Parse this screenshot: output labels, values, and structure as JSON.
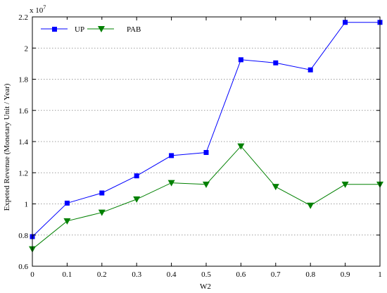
{
  "chart_data": {
    "type": "line",
    "xlabel": "W2",
    "ylabel": "Expeted Revenue (Monetary Unit / Year)",
    "y_multiplier_label": "x 10",
    "y_multiplier_exponent": "7",
    "xlim": [
      0,
      1
    ],
    "ylim": [
      0.6,
      2.2
    ],
    "x_ticks": [
      0,
      0.1,
      0.2,
      0.3,
      0.4,
      0.5,
      0.6,
      0.7,
      0.8,
      0.9,
      1
    ],
    "x_tick_labels": [
      "0",
      "0.1",
      "0.2",
      "0.3",
      "0.4",
      "0.5",
      "0.6",
      "0.7",
      "0.8",
      "0.9",
      "1"
    ],
    "y_ticks": [
      0.6,
      0.8,
      1.0,
      1.2,
      1.4,
      1.6,
      1.8,
      2.0,
      2.2
    ],
    "y_tick_labels": [
      "0.6",
      "0.8",
      "1",
      "1.2",
      "1.4",
      "1.6",
      "1.8",
      "2",
      "2.2"
    ],
    "grid": true,
    "legend_position": "top-left",
    "x": [
      0,
      0.1,
      0.2,
      0.3,
      0.4,
      0.5,
      0.6,
      0.7,
      0.8,
      0.9,
      1.0
    ],
    "series": [
      {
        "name": "UP",
        "color": "#0000ff",
        "marker": "square",
        "values": [
          0.79,
          1.005,
          1.07,
          1.18,
          1.31,
          1.33,
          1.925,
          1.905,
          1.86,
          2.165,
          2.165
        ]
      },
      {
        "name": "PAB",
        "color": "#008000",
        "marker": "triangle-down",
        "values": [
          0.71,
          0.89,
          0.945,
          1.03,
          1.135,
          1.125,
          1.37,
          1.11,
          0.99,
          1.125,
          1.125
        ]
      }
    ]
  }
}
